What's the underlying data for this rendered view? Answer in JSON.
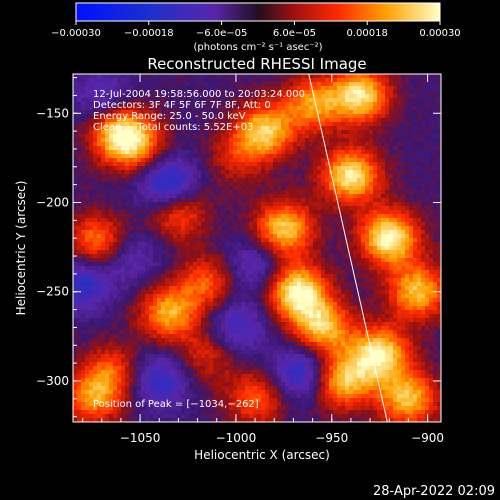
{
  "chart_data": {
    "type": "heatmap",
    "title": "Reconstructed RHESSI Image",
    "xlabel": "Heliocentric X (arcsec)",
    "ylabel": "Heliocentric Y (arcsec)",
    "xlim": [
      -1085,
      -893
    ],
    "ylim": [
      -323,
      -128
    ],
    "x_ticks": [
      -1050,
      -1000,
      -950,
      -900
    ],
    "x_tick_labels": [
      "−1050",
      "−1000",
      "−950",
      "−900"
    ],
    "y_ticks": [
      -150,
      -200,
      -250,
      -300
    ],
    "y_tick_labels": [
      "−150",
      "−200",
      "−250",
      "−300"
    ],
    "colorbar": {
      "range": [
        -0.0003,
        0.0003
      ],
      "tick_values": [
        -0.0003,
        -0.00018,
        -6e-05,
        6e-05,
        0.00018,
        0.0003
      ],
      "tick_labels": [
        "−0.00030",
        "−0.00018",
        "−6.0e−05",
        "6.0e−05",
        "0.00018",
        "0.00030"
      ],
      "units": "(photons cm⁻² s⁻¹ asec⁻²)"
    },
    "annotations": [
      "12-Jul-2004 19:58:56.000 to 20:03:24.000",
      "Detectors: 3F 4F 5F 6F 7F 8F, Att: 0",
      "Energy Range: 25.0 - 50.0 keV",
      "Clean     Total counts: 5.52E+03",
      "Position of Peak = [−1034,−262]"
    ],
    "limb_line": {
      "x": [
        -962,
        -921
      ],
      "y": [
        -128,
        -323
      ]
    },
    "peak": {
      "x": -1034,
      "y": -262
    },
    "bright_sources": [
      {
        "x": -1060,
        "y": -162,
        "value": 0.00028
      },
      {
        "x": -1050,
        "y": -170,
        "value": 0.00012
      },
      {
        "x": -1072,
        "y": -222,
        "value": 0.0002
      },
      {
        "x": -1030,
        "y": -205,
        "value": 0.00018
      },
      {
        "x": -1015,
        "y": -245,
        "value": 0.00016
      },
      {
        "x": -1035,
        "y": -262,
        "value": 0.00022
      },
      {
        "x": -1065,
        "y": -295,
        "value": 0.00015
      },
      {
        "x": -1015,
        "y": -285,
        "value": 0.00012
      },
      {
        "x": -1075,
        "y": -310,
        "value": 0.00018
      },
      {
        "x": -985,
        "y": -160,
        "value": 0.00025
      },
      {
        "x": -960,
        "y": -145,
        "value": 0.0002
      },
      {
        "x": -975,
        "y": -215,
        "value": 0.00026
      },
      {
        "x": -968,
        "y": -250,
        "value": 0.0003
      },
      {
        "x": -955,
        "y": -270,
        "value": 0.00024
      },
      {
        "x": -935,
        "y": -140,
        "value": 0.00027
      },
      {
        "x": -940,
        "y": -185,
        "value": 0.00028
      },
      {
        "x": -920,
        "y": -220,
        "value": 0.0003
      },
      {
        "x": -905,
        "y": -250,
        "value": 0.00024
      },
      {
        "x": -925,
        "y": -285,
        "value": 0.00028
      },
      {
        "x": -945,
        "y": -300,
        "value": 0.00025
      },
      {
        "x": -910,
        "y": -310,
        "value": 0.00024
      },
      {
        "x": -990,
        "y": -310,
        "value": 0.00016
      },
      {
        "x": -1000,
        "y": -175,
        "value": 0.0001
      }
    ],
    "dark_sources": [
      {
        "x": -1035,
        "y": -190,
        "value": -0.00022
      },
      {
        "x": -1080,
        "y": -245,
        "value": -0.00016
      },
      {
        "x": -1040,
        "y": -300,
        "value": -0.00015
      },
      {
        "x": -1055,
        "y": -230,
        "value": -0.0001
      },
      {
        "x": -965,
        "y": -295,
        "value": -0.00018
      },
      {
        "x": -990,
        "y": -235,
        "value": -0.00012
      },
      {
        "x": -1000,
        "y": -270,
        "value": -0.00014
      },
      {
        "x": -1070,
        "y": -140,
        "value": -0.0001
      }
    ]
  },
  "footer": {
    "timestamp": "28-Apr-2022 02:09"
  }
}
